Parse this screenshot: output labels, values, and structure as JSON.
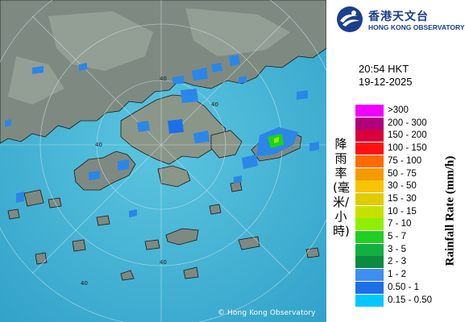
{
  "header": {
    "org_name_zh": "香港天文台",
    "org_name_en": "HONG KONG OBSERVATORY",
    "logo_icon": "hko-logo-icon"
  },
  "timestamp": {
    "time": "20:54 HKT",
    "date": "19-12-2025"
  },
  "map": {
    "copyright": "© Hong Kong Observatory",
    "ring_labels": [
      "40",
      "40",
      "40",
      "40",
      "40"
    ],
    "colors": {
      "sea": "#46b4d6",
      "land": "#7d8b80",
      "rain_light": "#2a87e8"
    }
  },
  "legend": {
    "axis_label_zh": "降雨率(毫米/小時)",
    "axis_label_en": "Rainfall Rate (mm/h)",
    "items": [
      {
        "label": ">300",
        "color": "#f000ff"
      },
      {
        "label": "200 - 300",
        "color": "#b0007c"
      },
      {
        "label": "150 - 200",
        "color": "#d8003c"
      },
      {
        "label": "100 - 150",
        "color": "#ff1010"
      },
      {
        "label": "75 - 100",
        "color": "#ff6a00"
      },
      {
        "label": "50 - 75",
        "color": "#f59a00"
      },
      {
        "label": "30 - 50",
        "color": "#f7c400"
      },
      {
        "label": "15 - 30",
        "color": "#e0cc00"
      },
      {
        "label": "10 - 15",
        "color": "#c8e000"
      },
      {
        "label": "7 - 10",
        "color": "#8ef000"
      },
      {
        "label": "5 - 7",
        "color": "#20d020"
      },
      {
        "label": "3 - 5",
        "color": "#12b040"
      },
      {
        "label": "2 - 3",
        "color": "#0c8a40"
      },
      {
        "label": "1 - 2",
        "color": "#3d8ef0"
      },
      {
        "label": "0.50 - 1",
        "color": "#1c6fe8"
      },
      {
        "label": "0.15 - 0.50",
        "color": "#00c8ff"
      }
    ]
  }
}
